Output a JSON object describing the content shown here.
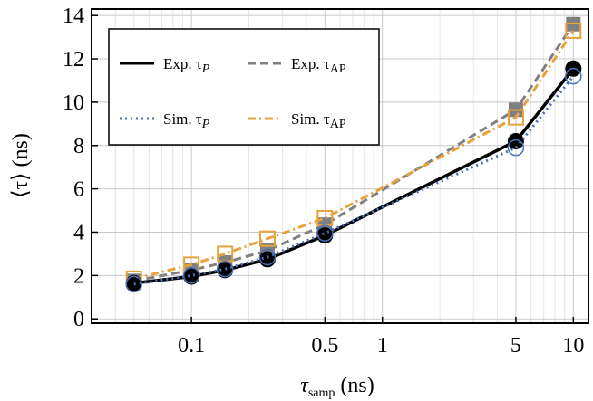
{
  "chart_data": {
    "type": "line",
    "xscale": "log",
    "xlim": [
      0.03,
      12
    ],
    "ylim": [
      -0.2,
      14.3
    ],
    "xticks": [
      0.1,
      0.5,
      1,
      5,
      10
    ],
    "xtick_labels": [
      "0.1",
      "0.5",
      "1",
      "5",
      "10"
    ],
    "yticks": [
      0,
      2,
      4,
      6,
      8,
      10,
      12,
      14
    ],
    "ytick_labels": [
      "0",
      "2",
      "4",
      "6",
      "8",
      "10",
      "12",
      "14"
    ],
    "xlabel": "τsamp (ns)",
    "xlabel_main": "τ",
    "xlabel_sub": "samp",
    "xlabel_unit": "(ns)",
    "ylabel": "⟨τ⟩ (ns)",
    "grid": true,
    "legend_position": "top-left",
    "x": [
      0.05,
      0.1,
      0.15,
      0.25,
      0.5,
      5,
      10
    ],
    "series": [
      {
        "name": "Exp. τP",
        "label_main": "Exp. τ",
        "label_sub": "P",
        "style": "solid",
        "color": "#000000",
        "marker": "filled-circle",
        "values": [
          1.65,
          1.95,
          2.25,
          2.75,
          3.85,
          8.2,
          11.55
        ]
      },
      {
        "name": "Exp. τAP",
        "label_main": "Exp. τ",
        "label_sub": "AP",
        "style": "dashed",
        "color": "#808080",
        "marker": "filled-square",
        "values": [
          1.75,
          2.25,
          2.6,
          3.15,
          4.35,
          9.65,
          13.6
        ]
      },
      {
        "name": "Sim. τP",
        "label_main": "Sim. τ",
        "label_sub": "P",
        "style": "dotted",
        "color": "#4a6fb5",
        "marker": "open-circle",
        "values": [
          1.6,
          2.0,
          2.3,
          2.85,
          3.95,
          7.9,
          11.2
        ]
      },
      {
        "name": "Sim. τAP",
        "label_main": "Sim. τ",
        "label_sub": "AP",
        "style": "dashdot",
        "color": "#e6a23c",
        "marker": "open-square",
        "values": [
          1.85,
          2.5,
          3.0,
          3.7,
          4.65,
          9.3,
          13.3
        ]
      }
    ]
  }
}
